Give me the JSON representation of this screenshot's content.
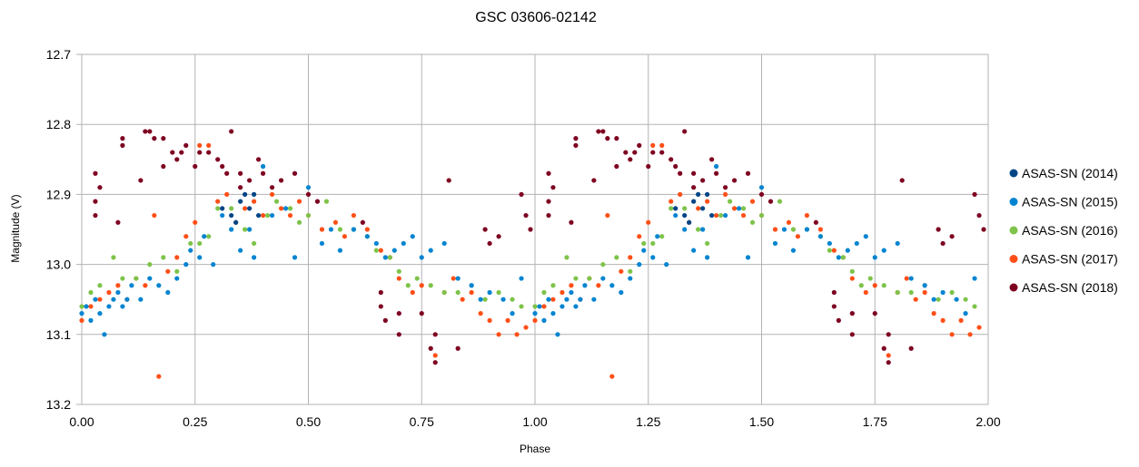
{
  "chart_data": {
    "type": "scatter",
    "title": "GSC 03606-02142",
    "xlabel": "Phase",
    "ylabel": "Magnitude (V)",
    "xlim": [
      0,
      2
    ],
    "ylim": [
      12.7,
      13.2
    ],
    "y_inverted": true,
    "grid": true,
    "legend_position": "right",
    "x_ticks": [
      "0.00",
      "0.25",
      "0.50",
      "0.75",
      "1.00",
      "1.25",
      "1.50",
      "1.75",
      "2.00"
    ],
    "y_ticks": [
      "12.7",
      "12.8",
      "12.9",
      "13.0",
      "13.1",
      "13.2"
    ],
    "phase_repeated_twice": true,
    "series": [
      {
        "name": "ASAS-SN (2014)",
        "color": "#004586",
        "points": [
          [
            0.31,
            12.92
          ],
          [
            0.33,
            12.93
          ],
          [
            0.35,
            12.91
          ],
          [
            0.36,
            12.9
          ],
          [
            0.37,
            12.92
          ],
          [
            0.38,
            12.9
          ],
          [
            0.39,
            12.93
          ],
          [
            0.34,
            12.94
          ]
        ]
      },
      {
        "name": "ASAS-SN (2015)",
        "color": "#0084d1",
        "points": [
          [
            0.0,
            13.07
          ],
          [
            0.01,
            13.06
          ],
          [
            0.02,
            13.08
          ],
          [
            0.03,
            13.05
          ],
          [
            0.04,
            13.07
          ],
          [
            0.05,
            13.1
          ],
          [
            0.06,
            13.06
          ],
          [
            0.07,
            13.05
          ],
          [
            0.08,
            13.04
          ],
          [
            0.09,
            13.06
          ],
          [
            0.1,
            13.05
          ],
          [
            0.11,
            13.03
          ],
          [
            0.13,
            13.05
          ],
          [
            0.15,
            13.02
          ],
          [
            0.17,
            13.03
          ],
          [
            0.19,
            13.04
          ],
          [
            0.21,
            13.02
          ],
          [
            0.23,
            13.0
          ],
          [
            0.24,
            12.98
          ],
          [
            0.26,
            12.99
          ],
          [
            0.27,
            12.96
          ],
          [
            0.29,
            13.0
          ],
          [
            0.31,
            12.93
          ],
          [
            0.33,
            12.95
          ],
          [
            0.35,
            12.98
          ],
          [
            0.37,
            12.95
          ],
          [
            0.38,
            12.99
          ],
          [
            0.4,
            12.86
          ],
          [
            0.42,
            12.93
          ],
          [
            0.45,
            12.92
          ],
          [
            0.47,
            12.99
          ],
          [
            0.5,
            12.89
          ],
          [
            0.53,
            12.97
          ],
          [
            0.55,
            12.95
          ],
          [
            0.57,
            12.98
          ],
          [
            0.6,
            12.95
          ],
          [
            0.63,
            12.96
          ],
          [
            0.65,
            12.97
          ],
          [
            0.67,
            12.99
          ],
          [
            0.69,
            12.98
          ],
          [
            0.71,
            12.97
          ],
          [
            0.73,
            12.96
          ],
          [
            0.75,
            12.99
          ],
          [
            0.77,
            12.98
          ],
          [
            0.8,
            12.97
          ],
          [
            0.83,
            13.02
          ],
          [
            0.86,
            13.03
          ],
          [
            0.88,
            13.05
          ],
          [
            0.9,
            13.04
          ],
          [
            0.93,
            13.05
          ],
          [
            0.95,
            13.07
          ],
          [
            0.97,
            13.02
          ]
        ]
      },
      {
        "name": "ASAS-SN (2016)",
        "color": "#7ec34a",
        "points": [
          [
            0.0,
            13.06
          ],
          [
            0.02,
            13.04
          ],
          [
            0.04,
            13.03
          ],
          [
            0.07,
            12.99
          ],
          [
            0.09,
            13.02
          ],
          [
            0.12,
            13.02
          ],
          [
            0.15,
            13.0
          ],
          [
            0.18,
            12.99
          ],
          [
            0.21,
            13.01
          ],
          [
            0.24,
            12.97
          ],
          [
            0.26,
            12.97
          ],
          [
            0.28,
            12.96
          ],
          [
            0.3,
            12.92
          ],
          [
            0.33,
            12.92
          ],
          [
            0.36,
            12.95
          ],
          [
            0.38,
            12.97
          ],
          [
            0.41,
            12.93
          ],
          [
            0.43,
            12.91
          ],
          [
            0.46,
            12.92
          ],
          [
            0.48,
            12.94
          ],
          [
            0.5,
            12.93
          ],
          [
            0.54,
            12.91
          ],
          [
            0.57,
            12.95
          ],
          [
            0.6,
            12.95
          ],
          [
            0.63,
            12.96
          ],
          [
            0.65,
            12.98
          ],
          [
            0.68,
            12.99
          ],
          [
            0.7,
            13.01
          ],
          [
            0.72,
            13.03
          ],
          [
            0.74,
            13.02
          ],
          [
            0.77,
            13.03
          ],
          [
            0.8,
            13.04
          ],
          [
            0.83,
            13.04
          ],
          [
            0.86,
            13.03
          ],
          [
            0.89,
            13.05
          ],
          [
            0.92,
            13.04
          ],
          [
            0.95,
            13.05
          ],
          [
            0.97,
            13.06
          ]
        ]
      },
      {
        "name": "ASAS-SN (2017)",
        "color": "#ff4f17",
        "points": [
          [
            0.0,
            13.08
          ],
          [
            0.02,
            13.06
          ],
          [
            0.04,
            13.05
          ],
          [
            0.06,
            13.04
          ],
          [
            0.08,
            13.03
          ],
          [
            0.1,
            13.05
          ],
          [
            0.12,
            13.02
          ],
          [
            0.14,
            13.03
          ],
          [
            0.16,
            12.93
          ],
          [
            0.17,
            13.16
          ],
          [
            0.19,
            13.01
          ],
          [
            0.21,
            12.99
          ],
          [
            0.23,
            12.96
          ],
          [
            0.25,
            12.94
          ],
          [
            0.26,
            12.83
          ],
          [
            0.28,
            12.83
          ],
          [
            0.3,
            12.91
          ],
          [
            0.32,
            12.9
          ],
          [
            0.34,
            12.94
          ],
          [
            0.36,
            12.92
          ],
          [
            0.38,
            12.91
          ],
          [
            0.4,
            12.93
          ],
          [
            0.42,
            12.9
          ],
          [
            0.44,
            12.92
          ],
          [
            0.46,
            12.93
          ],
          [
            0.48,
            12.91
          ],
          [
            0.5,
            12.93
          ],
          [
            0.53,
            12.95
          ],
          [
            0.56,
            12.94
          ],
          [
            0.58,
            12.96
          ],
          [
            0.6,
            12.93
          ],
          [
            0.63,
            12.95
          ],
          [
            0.66,
            12.98
          ],
          [
            0.68,
            12.99
          ],
          [
            0.7,
            13.02
          ],
          [
            0.73,
            13.04
          ],
          [
            0.75,
            13.03
          ],
          [
            0.78,
            13.13
          ],
          [
            0.8,
            13.04
          ],
          [
            0.82,
            13.02
          ],
          [
            0.84,
            13.05
          ],
          [
            0.86,
            13.04
          ],
          [
            0.88,
            13.07
          ],
          [
            0.9,
            13.08
          ],
          [
            0.92,
            13.1
          ],
          [
            0.94,
            13.08
          ],
          [
            0.96,
            13.1
          ],
          [
            0.98,
            13.09
          ]
        ]
      },
      {
        "name": "ASAS-SN (2018)",
        "color": "#7e0021",
        "points": [
          [
            0.03,
            12.87
          ],
          [
            0.03,
            12.91
          ],
          [
            0.04,
            12.89
          ],
          [
            0.03,
            12.93
          ],
          [
            0.08,
            12.94
          ],
          [
            0.09,
            12.82
          ],
          [
            0.09,
            12.83
          ],
          [
            0.13,
            12.88
          ],
          [
            0.14,
            12.81
          ],
          [
            0.15,
            12.81
          ],
          [
            0.16,
            12.82
          ],
          [
            0.18,
            12.82
          ],
          [
            0.18,
            12.86
          ],
          [
            0.2,
            12.84
          ],
          [
            0.21,
            12.85
          ],
          [
            0.22,
            12.84
          ],
          [
            0.23,
            12.83
          ],
          [
            0.25,
            12.86
          ],
          [
            0.26,
            12.84
          ],
          [
            0.28,
            12.84
          ],
          [
            0.3,
            12.85
          ],
          [
            0.31,
            12.86
          ],
          [
            0.32,
            12.87
          ],
          [
            0.33,
            12.81
          ],
          [
            0.35,
            12.87
          ],
          [
            0.35,
            12.89
          ],
          [
            0.37,
            12.88
          ],
          [
            0.39,
            12.85
          ],
          [
            0.4,
            12.87
          ],
          [
            0.42,
            12.89
          ],
          [
            0.44,
            12.88
          ],
          [
            0.47,
            12.87
          ],
          [
            0.5,
            12.9
          ],
          [
            0.52,
            12.91
          ],
          [
            0.62,
            12.94
          ],
          [
            0.66,
            13.04
          ],
          [
            0.66,
            13.06
          ],
          [
            0.67,
            13.08
          ],
          [
            0.7,
            13.1
          ],
          [
            0.7,
            13.07
          ],
          [
            0.75,
            13.07
          ],
          [
            0.77,
            13.12
          ],
          [
            0.78,
            13.1
          ],
          [
            0.78,
            13.14
          ],
          [
            0.81,
            12.88
          ],
          [
            0.83,
            13.12
          ],
          [
            0.89,
            12.95
          ],
          [
            0.9,
            12.97
          ],
          [
            0.92,
            12.96
          ],
          [
            0.97,
            12.9
          ],
          [
            0.98,
            12.93
          ],
          [
            0.99,
            12.95
          ]
        ]
      }
    ]
  }
}
